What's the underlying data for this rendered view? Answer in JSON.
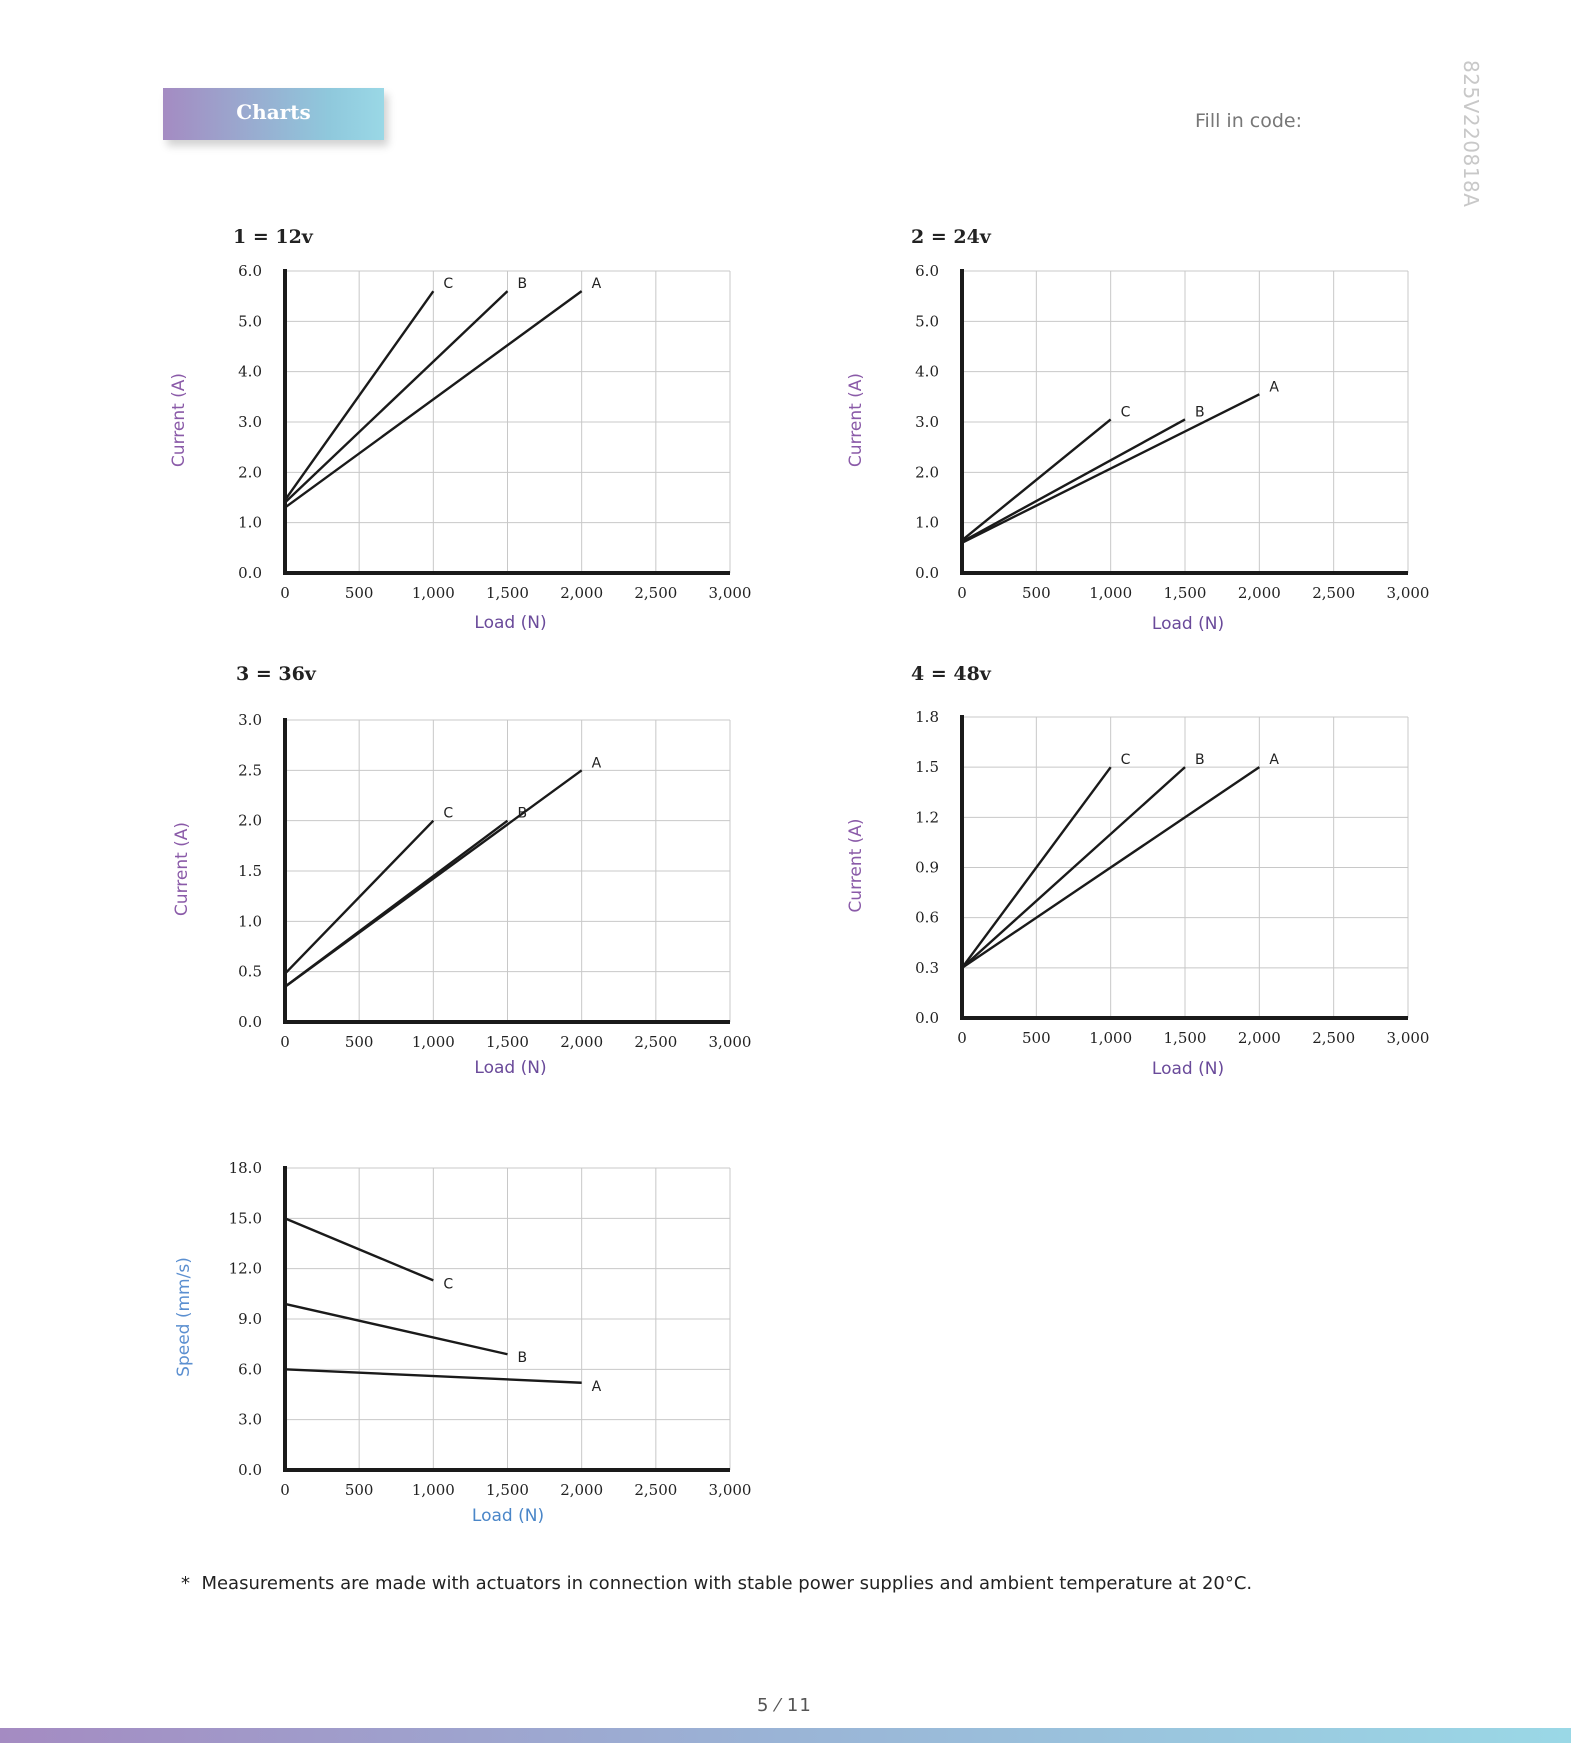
{
  "header": {
    "tab_label": "Charts",
    "fill_in_label": "Fill in code:",
    "doc_code": "825V220818A"
  },
  "footnote": {
    "marker": "*",
    "text": "Measurements are made with actuators in connection with stable power supplies and ambient temperature at 20°C."
  },
  "page": {
    "number": "5 ⁄ 11"
  },
  "colors": {
    "grid": "#c8c8c8",
    "axis": "#1a1a1a",
    "line": "#1a1a1a",
    "current_label": "#8a5aa8",
    "load_label": "#6a4a9a",
    "speed_label": "#5b8fd0",
    "load_label_speed": "#4a86c8"
  },
  "chart_data": [
    {
      "type": "line",
      "title": "1 = 12v",
      "xlabel": "Load (N)",
      "ylabel": "Current (A)",
      "x_ticks": [
        "0",
        "500",
        "1,000",
        "1,500",
        "2,000",
        "2,500",
        "3,000"
      ],
      "y_ticks": [
        "0.0",
        "1.0",
        "2.0",
        "3.0",
        "4.0",
        "5.0",
        "6.0"
      ],
      "xlim": [
        0,
        3000
      ],
      "ylim": [
        0,
        6
      ],
      "grid": true,
      "series": [
        {
          "name": "C",
          "x": [
            0,
            1000
          ],
          "y": [
            1.45,
            5.6
          ]
        },
        {
          "name": "B",
          "x": [
            0,
            1500
          ],
          "y": [
            1.4,
            5.6
          ]
        },
        {
          "name": "A",
          "x": [
            0,
            2000
          ],
          "y": [
            1.3,
            5.6
          ]
        }
      ]
    },
    {
      "type": "line",
      "title": "2 = 24v",
      "xlabel": "Load (N)",
      "ylabel": "Current (A)",
      "x_ticks": [
        "0",
        "500",
        "1,000",
        "1,500",
        "2,000",
        "2,500",
        "3,000"
      ],
      "y_ticks": [
        "0.0",
        "1.0",
        "2.0",
        "3.0",
        "4.0",
        "5.0",
        "6.0"
      ],
      "xlim": [
        0,
        3000
      ],
      "ylim": [
        0,
        6
      ],
      "grid": true,
      "series": [
        {
          "name": "C",
          "x": [
            0,
            1000
          ],
          "y": [
            0.65,
            3.05
          ]
        },
        {
          "name": "B",
          "x": [
            0,
            1500
          ],
          "y": [
            0.62,
            3.05
          ]
        },
        {
          "name": "A",
          "x": [
            0,
            2000
          ],
          "y": [
            0.6,
            3.55
          ]
        }
      ]
    },
    {
      "type": "line",
      "title": "3 = 36v",
      "xlabel": "Load (N)",
      "ylabel": "Current (A)",
      "x_ticks": [
        "0",
        "500",
        "1,000",
        "1,500",
        "2,000",
        "2,500",
        "3,000"
      ],
      "y_ticks": [
        "0.0",
        "0.5",
        "1.0",
        "1.5",
        "2.0",
        "2.5",
        "3.0"
      ],
      "xlim": [
        0,
        3000
      ],
      "ylim": [
        0,
        3
      ],
      "grid": true,
      "series": [
        {
          "name": "C",
          "x": [
            0,
            1000
          ],
          "y": [
            0.48,
            2.0
          ]
        },
        {
          "name": "B",
          "x": [
            0,
            1500
          ],
          "y": [
            0.35,
            2.0
          ]
        },
        {
          "name": "A",
          "x": [
            0,
            2000
          ],
          "y": [
            0.35,
            2.5
          ]
        }
      ]
    },
    {
      "type": "line",
      "title": "4 = 48v",
      "xlabel": "Load (N)",
      "ylabel": "Current (A)",
      "x_ticks": [
        "0",
        "500",
        "1,000",
        "1,500",
        "2,000",
        "2,500",
        "3,000"
      ],
      "y_ticks": [
        "0.0",
        "0.3",
        "0.6",
        "0.9",
        "1.2",
        "1.5",
        "1.8"
      ],
      "xlim": [
        0,
        3000
      ],
      "ylim": [
        0,
        1.8
      ],
      "grid": true,
      "series": [
        {
          "name": "C",
          "x": [
            0,
            1000
          ],
          "y": [
            0.3,
            1.5
          ]
        },
        {
          "name": "B",
          "x": [
            0,
            1500
          ],
          "y": [
            0.3,
            1.5
          ]
        },
        {
          "name": "A",
          "x": [
            0,
            2000
          ],
          "y": [
            0.3,
            1.5
          ]
        }
      ]
    },
    {
      "type": "line",
      "title": "",
      "xlabel": "Load (N)",
      "ylabel": "Speed (mm/s)",
      "x_ticks": [
        "0",
        "500",
        "1,000",
        "1,500",
        "2,000",
        "2,500",
        "3,000"
      ],
      "y_ticks": [
        "0.0",
        "3.0",
        "6.0",
        "9.0",
        "12.0",
        "15.0",
        "18.0"
      ],
      "xlim": [
        0,
        3000
      ],
      "ylim": [
        0,
        18
      ],
      "grid": true,
      "series": [
        {
          "name": "C",
          "x": [
            0,
            1000
          ],
          "y": [
            15.0,
            11.3
          ]
        },
        {
          "name": "B",
          "x": [
            0,
            1500
          ],
          "y": [
            9.9,
            6.9
          ]
        },
        {
          "name": "A",
          "x": [
            0,
            2000
          ],
          "y": [
            6.0,
            5.2
          ]
        }
      ]
    }
  ]
}
